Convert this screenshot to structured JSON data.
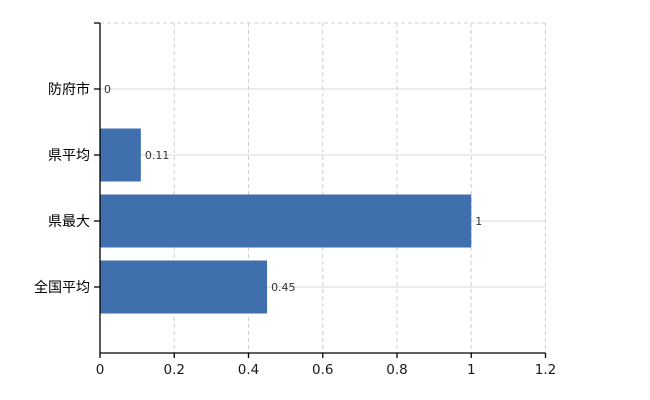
{
  "chart_data": {
    "type": "bar",
    "orientation": "horizontal",
    "title": "",
    "xlabel": "",
    "ylabel": "",
    "categories": [
      "防府市",
      "県平均",
      "県最大",
      "全国平均"
    ],
    "values": [
      0,
      0.11,
      1,
      0.45
    ],
    "value_labels": [
      "0",
      "0.11",
      "1",
      "0.45"
    ],
    "x_ticks": [
      0,
      0.2,
      0.4,
      0.6,
      0.8,
      1,
      1.2
    ],
    "x_tick_labels": [
      "0",
      "0.2",
      "0.4",
      "0.6",
      "0.8",
      "1",
      "1.2"
    ],
    "xlim": [
      0,
      1.2
    ],
    "legend": "none",
    "grid": {
      "horizontal": "solid",
      "vertical": "dashed",
      "top_border": "dashed"
    },
    "colors": {
      "bar": "#3f6fad",
      "axis": "#000000",
      "grid_horizontal": "#d6ddd6",
      "grid_vertical": "#d4cfcf",
      "category_text": "#000000",
      "tick_text": "#1a1a1a",
      "value_text": "#333333",
      "background": "#ffffff"
    }
  }
}
